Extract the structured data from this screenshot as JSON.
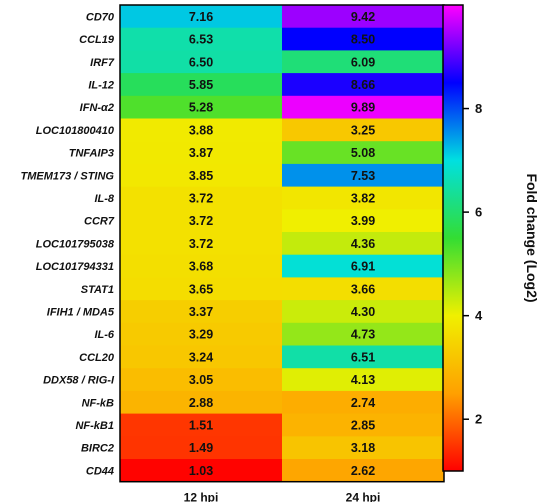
{
  "chart_data": {
    "type": "heatmap",
    "columns": [
      "12 hpi",
      "24 hpi"
    ],
    "rows": [
      "CD70",
      "CCL19",
      "IRF7",
      "IL-12",
      "IFN-α2",
      "LOC101800410",
      "TNFAIP3",
      "TMEM173 / STING",
      "IL-8",
      "CCR7",
      "LOC101795038",
      "LOC101794331",
      "STAT1",
      "IFIH1 / MDA5",
      "IL-6",
      "CCL20",
      "DDX58 / RIG-I",
      "NF-kB",
      "NF-kB1",
      "BIRC2",
      "CD44"
    ],
    "values": [
      [
        "7.16",
        "9.42"
      ],
      [
        "6.53",
        "8.50"
      ],
      [
        "6.50",
        "6.09"
      ],
      [
        "5.85",
        "8.66"
      ],
      [
        "5.28",
        "9.89"
      ],
      [
        "3.88",
        "3.25"
      ],
      [
        "3.87",
        "5.08"
      ],
      [
        "3.85",
        "7.53"
      ],
      [
        "3.72",
        "3.82"
      ],
      [
        "3.72",
        "3.99"
      ],
      [
        "3.72",
        "4.36"
      ],
      [
        "3.68",
        "6.91"
      ],
      [
        "3.65",
        "3.66"
      ],
      [
        "3.37",
        "4.30"
      ],
      [
        "3.29",
        "4.73"
      ],
      [
        "3.24",
        "6.51"
      ],
      [
        "3.05",
        "4.13"
      ],
      [
        "2.88",
        "2.74"
      ],
      [
        "1.51",
        "2.85"
      ],
      [
        "1.49",
        "3.18"
      ],
      [
        "1.03",
        "2.62"
      ]
    ],
    "colorbar": {
      "label": "Fold change (Log2)",
      "range": [
        1,
        10
      ],
      "ticks": [
        "2",
        "4",
        "6",
        "8"
      ],
      "colors": [
        "#ff0000",
        "#ffa000",
        "#f0f000",
        "#33dd33",
        "#00e0e0",
        "#0000ff",
        "#ff00ff"
      ]
    }
  }
}
